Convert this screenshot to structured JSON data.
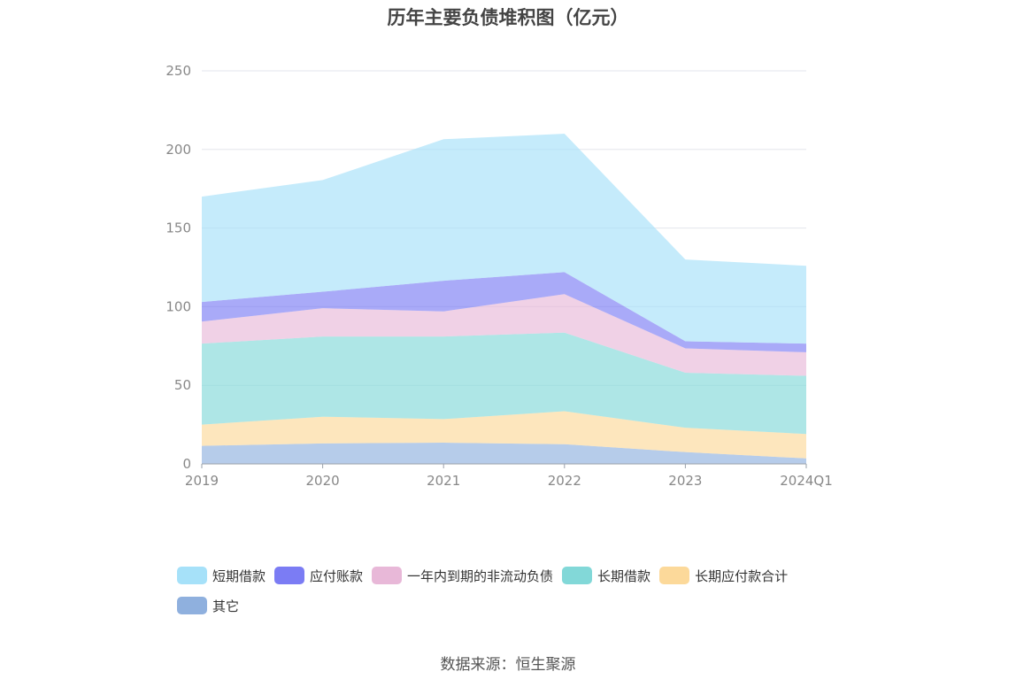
{
  "chart_data": {
    "type": "area",
    "stacked": true,
    "title": "历年主要负债堆积图（亿元）",
    "categories": [
      "2019",
      "2020",
      "2021",
      "2022",
      "2023",
      "2024Q1"
    ],
    "y_ticks": [
      "0",
      "50",
      "100",
      "150",
      "200",
      "250"
    ],
    "ylim": [
      0,
      250
    ],
    "grid": true,
    "legend_position": "bottom",
    "series": [
      {
        "name": "其它",
        "color": "#8fb0de",
        "values": [
          11.5,
          13,
          13.5,
          12.5,
          7.5,
          3.5
        ]
      },
      {
        "name": "长期应付款合计",
        "color": "#fcd99a",
        "values": [
          13.5,
          17,
          15,
          21,
          15.5,
          15.5
        ]
      },
      {
        "name": "长期借款",
        "color": "#82d8d8",
        "values": [
          51.5,
          51,
          52.5,
          50,
          35,
          37
        ]
      },
      {
        "name": "一年内到期的非流动负债",
        "color": "#e8b8d8",
        "values": [
          14,
          18,
          16,
          24.5,
          15.5,
          15
        ]
      },
      {
        "name": "应付账款",
        "color": "#7b7cf4",
        "values": [
          12.5,
          10.5,
          19.5,
          14,
          4.5,
          5.5
        ]
      },
      {
        "name": "短期借款",
        "color": "#a6e1f9",
        "values": [
          67,
          71,
          90,
          88,
          52,
          49.5
        ]
      }
    ]
  },
  "legend_order": [
    "短期借款",
    "应付账款",
    "一年内到期的非流动负债",
    "长期借款",
    "长期应付款合计",
    "其它"
  ],
  "source": "数据来源：恒生聚源"
}
